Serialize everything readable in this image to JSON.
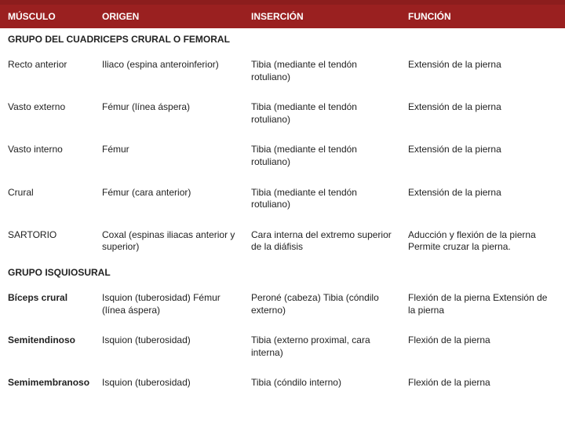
{
  "colors": {
    "header_bg": "#9a2020",
    "header_text": "#ffffff",
    "body_bg": "#ffffff",
    "text": "#222222"
  },
  "columns": [
    "MÚSCULO",
    "ORIGEN",
    "INSERCIÓN",
    "FUNCIÓN"
  ],
  "sections": [
    {
      "title": "GRUPO DEL CUADRICEPS CRURAL O FEMORAL",
      "rows": [
        {
          "musculo": "Recto anterior",
          "origen": "Iliaco (espina anteroinferior)",
          "insercion": "Tibia (mediante el tendón rotuliano)",
          "funcion": "Extensión de la pierna"
        },
        {
          "musculo": "Vasto externo",
          "origen": "Fémur (línea áspera)",
          "insercion": "Tibia (mediante el tendón rotuliano)",
          "funcion": "Extensión de la pierna"
        },
        {
          "musculo": "Vasto interno",
          "origen": "Fémur",
          "insercion": "Tibia (mediante el tendón rotuliano)",
          "funcion": "Extensión de la pierna"
        },
        {
          "musculo": "Crural",
          "origen": "Fémur (cara anterior)",
          "insercion": "Tibia (mediante el tendón rotuliano)",
          "funcion": "Extensión de la pierna"
        },
        {
          "musculo": "SARTORIO",
          "origen": "Coxal (espinas iliacas anterior y superior)",
          "insercion": "Cara interna del extremo superior de la diáfisis",
          "funcion": "Aducción y flexión de la pierna\nPermite cruzar la pierna."
        }
      ]
    },
    {
      "title": "GRUPO ISQUIOSURAL",
      "rows": [
        {
          "musculo": "Bíceps crural",
          "bold_musculo": true,
          "origen": "Isquion (tuberosidad)\nFémur (línea áspera)",
          "insercion": "Peroné (cabeza)\nTibia (cóndilo externo)",
          "funcion": "Flexión de la pierna\nExtensión de la pierna"
        },
        {
          "musculo": "Semitendinoso",
          "bold_musculo": true,
          "origen": "Isquion (tuberosidad)",
          "insercion": "Tibia (externo proximal, cara interna)",
          "funcion": "Flexión  de la pierna"
        },
        {
          "musculo": "Semimembranoso",
          "bold_musculo": true,
          "origen": "Isquion (tuberosidad)",
          "insercion": "Tibia (cóndilo interno)",
          "funcion": "Flexión de la pierna"
        }
      ]
    }
  ]
}
